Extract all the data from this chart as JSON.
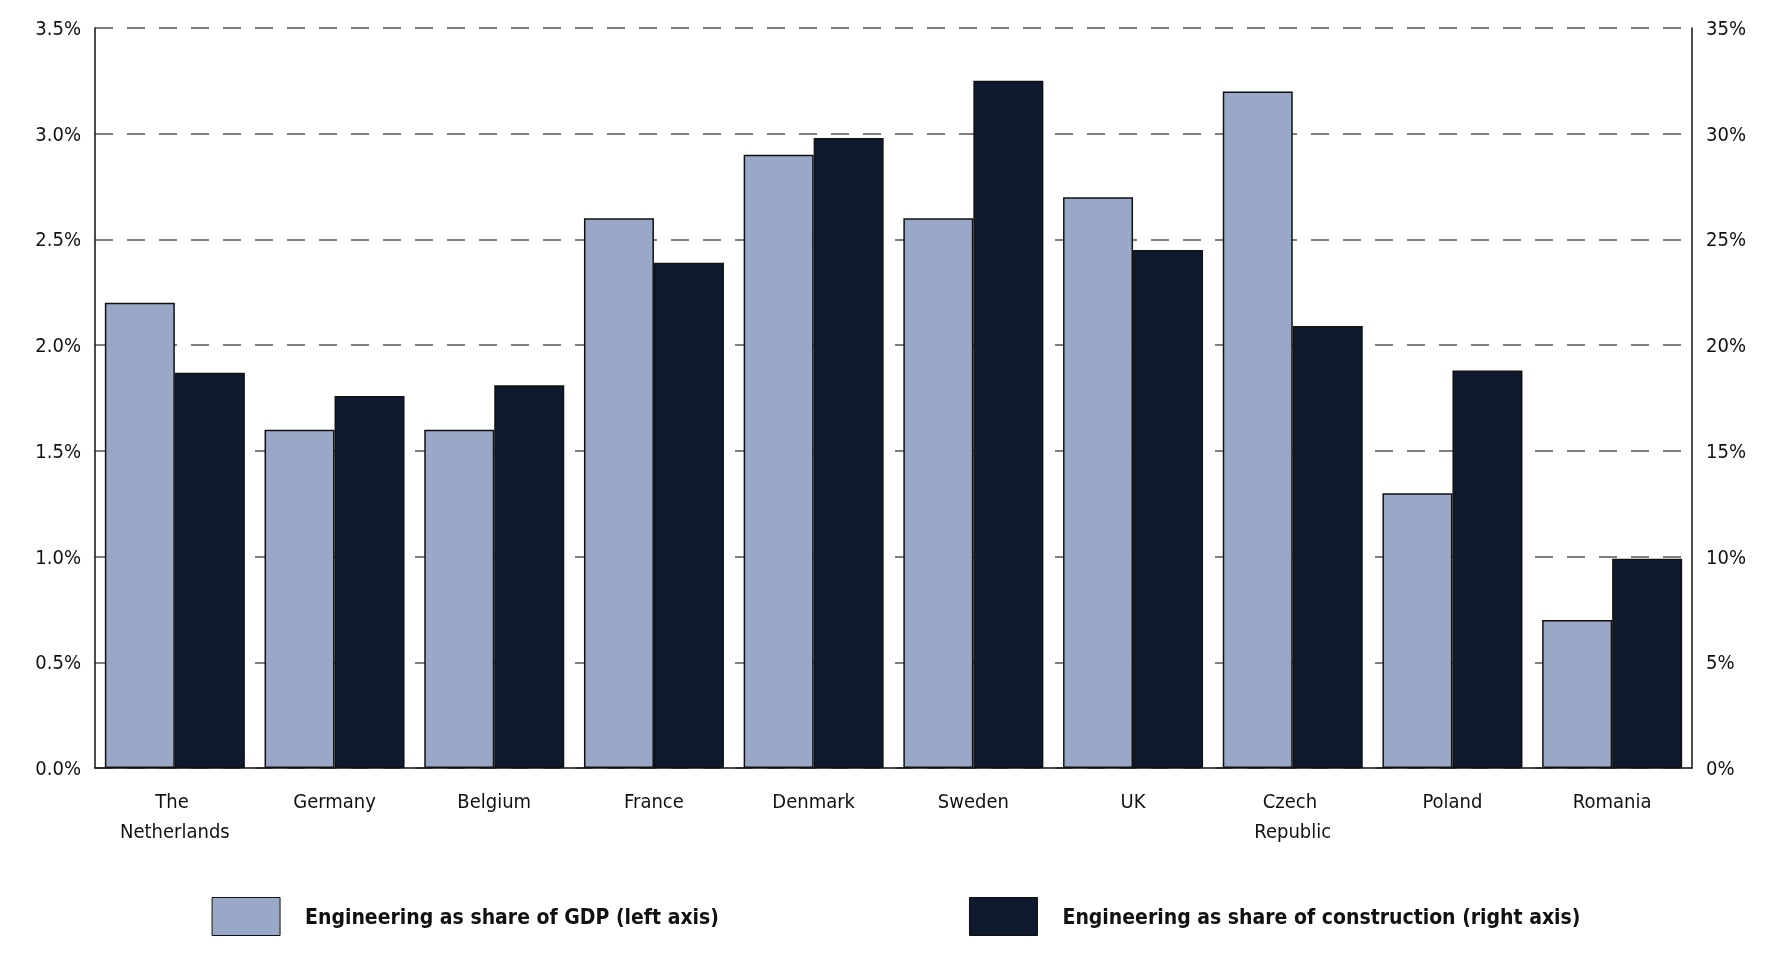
{
  "chart_data": {
    "type": "bar",
    "categories": [
      "The Netherlands",
      "Germany",
      "Belgium",
      "France",
      "Denmark",
      "Sweden",
      "UK",
      "Czech Republic",
      "Poland",
      "Romania"
    ],
    "series": [
      {
        "name": "Engineering as share of GDP (left axis)",
        "color": "#9aa8c8",
        "values": [
          2.2,
          1.6,
          1.6,
          2.6,
          2.9,
          2.6,
          2.7,
          3.2,
          1.3,
          0.7
        ]
      },
      {
        "name": "Engineering as share of construction (right axis)",
        "color": "#0f1a2e",
        "axis": "y2",
        "values": [
          18.7,
          17.6,
          18.1,
          23.9,
          29.8,
          32.5,
          24.5,
          20.9,
          18.8,
          9.9
        ]
      }
    ],
    "ylim": [
      0,
      3.5
    ],
    "yticks": [
      {
        "value": 0,
        "label": "0.0%"
      },
      {
        "value": 0.5,
        "label": "0.5%"
      },
      {
        "value": 1,
        "label": "1.0%"
      },
      {
        "value": 1.5,
        "label": "1.5%"
      },
      {
        "value": 2,
        "label": "2.0%"
      },
      {
        "value": 2.5,
        "label": "2.5%"
      },
      {
        "value": 3,
        "label": "3.0%"
      },
      {
        "value": 3.5,
        "label": "3.5%"
      }
    ],
    "y2lim": [
      0,
      35
    ],
    "y2ticks": [
      {
        "value": 0,
        "label": "0%"
      },
      {
        "value": 5,
        "label": "5%"
      },
      {
        "value": 10,
        "label": "10%"
      },
      {
        "value": 15,
        "label": "15%"
      },
      {
        "value": 20,
        "label": "20%"
      },
      {
        "value": 25,
        "label": "25%"
      },
      {
        "value": 30,
        "label": "30%"
      },
      {
        "value": 35,
        "label": "35%"
      }
    ],
    "grid": "y",
    "legend": "bottom"
  }
}
